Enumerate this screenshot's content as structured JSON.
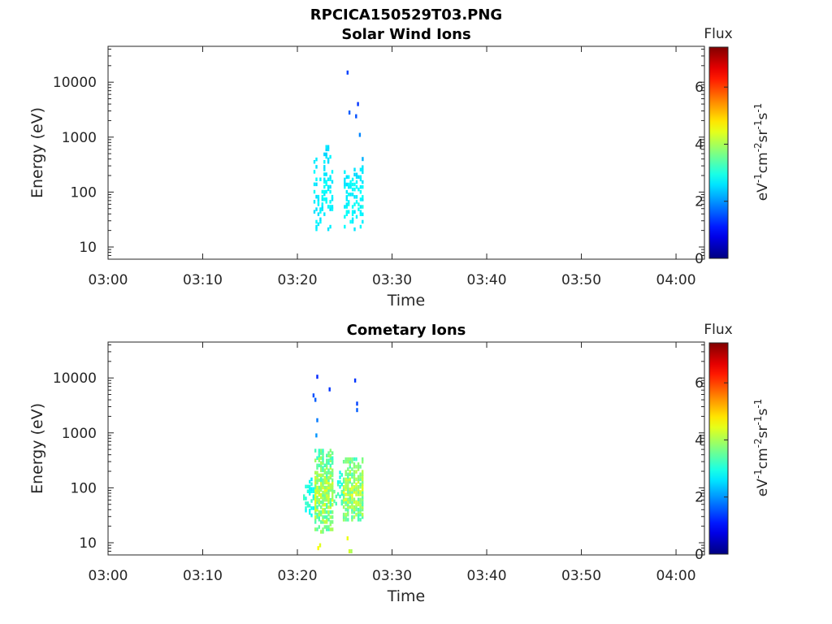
{
  "figure": {
    "title": "RPCICA150529T03.PNG"
  },
  "colorbar": {
    "label": "Flux",
    "unit_text": "eV-1cm-2sr-1s-1",
    "unit_parts": [
      {
        "t": "eV",
        "sup": false
      },
      {
        "t": "-1",
        "sup": true
      },
      {
        "t": "cm",
        "sup": false
      },
      {
        "t": "-2",
        "sup": true
      },
      {
        "t": "sr",
        "sup": false
      },
      {
        "t": "-1",
        "sup": true
      },
      {
        "t": "s",
        "sup": false
      },
      {
        "t": "-1",
        "sup": true
      }
    ],
    "range": [
      0,
      7.4
    ],
    "ticks": [
      0,
      2,
      4,
      6
    ],
    "colormap": "jet"
  },
  "chart_data": [
    {
      "type": "heatmap",
      "title": "Solar Wind Ions",
      "xlabel": "Time",
      "ylabel": "Energy (eV)",
      "x_ticks": [
        "03:00",
        "03:10",
        "03:20",
        "03:30",
        "03:40",
        "03:50",
        "04:00"
      ],
      "x_range_minutes": [
        0,
        63
      ],
      "y_scale": "log",
      "y_ticks": [
        10,
        100,
        1000,
        10000
      ],
      "y_range": [
        6,
        45000
      ],
      "clusters": [
        {
          "t0": 21.7,
          "t1": 23.8,
          "e0": 20,
          "e1": 700,
          "f0": 2.3,
          "f1": 2.9,
          "density": 0.26
        },
        {
          "t0": 24.9,
          "t1": 27.0,
          "e0": 20,
          "e1": 300,
          "f0": 2.3,
          "f1": 3.0,
          "density": 0.32
        }
      ],
      "points": [
        {
          "t": 25.2,
          "e": 15000,
          "f": 1.4
        },
        {
          "t": 25.4,
          "e": 2800,
          "f": 1.6
        },
        {
          "t": 26.3,
          "e": 4000,
          "f": 1.3
        },
        {
          "t": 26.1,
          "e": 2400,
          "f": 1.5
        },
        {
          "t": 26.5,
          "e": 1100,
          "f": 1.9
        },
        {
          "t": 26.8,
          "e": 400,
          "f": 2.2
        }
      ]
    },
    {
      "type": "heatmap",
      "title": "Cometary Ions",
      "xlabel": "Time",
      "ylabel": "Energy (eV)",
      "x_ticks": [
        "03:00",
        "03:10",
        "03:20",
        "03:30",
        "03:40",
        "03:50",
        "04:00"
      ],
      "x_range_minutes": [
        0,
        63
      ],
      "y_scale": "log",
      "y_ticks": [
        10,
        100,
        1000,
        10000
      ],
      "y_range": [
        6,
        45000
      ],
      "clusters": [
        {
          "t0": 20.6,
          "t1": 22.0,
          "e0": 30,
          "e1": 150,
          "f0": 2.4,
          "f1": 3.4,
          "density": 0.45
        },
        {
          "t0": 21.8,
          "t1": 23.8,
          "e0": 15,
          "e1": 500,
          "f0": 2.6,
          "f1": 4.6,
          "density": 0.78
        },
        {
          "t0": 23.8,
          "t1": 24.8,
          "e0": 40,
          "e1": 200,
          "f0": 2.6,
          "f1": 3.6,
          "density": 0.35
        },
        {
          "t0": 24.8,
          "t1": 27.0,
          "e0": 25,
          "e1": 350,
          "f0": 2.7,
          "f1": 4.6,
          "density": 0.82
        }
      ],
      "points": [
        {
          "t": 22.0,
          "e": 10500,
          "f": 1.2
        },
        {
          "t": 26.0,
          "e": 9000,
          "f": 1.3
        },
        {
          "t": 23.3,
          "e": 6200,
          "f": 1.3
        },
        {
          "t": 21.6,
          "e": 4800,
          "f": 1.5
        },
        {
          "t": 21.8,
          "e": 4000,
          "f": 1.6
        },
        {
          "t": 26.2,
          "e": 3400,
          "f": 1.4
        },
        {
          "t": 26.2,
          "e": 2600,
          "f": 1.6
        },
        {
          "t": 22.0,
          "e": 1700,
          "f": 1.8
        },
        {
          "t": 21.9,
          "e": 900,
          "f": 2.0
        },
        {
          "t": 22.1,
          "e": 8,
          "f": 4.6
        },
        {
          "t": 22.3,
          "e": 9,
          "f": 4.4
        },
        {
          "t": 25.2,
          "e": 12,
          "f": 4.5
        },
        {
          "t": 25.4,
          "e": 7,
          "f": 4.3
        },
        {
          "t": 25.6,
          "e": 7,
          "f": 4.0
        }
      ]
    }
  ]
}
